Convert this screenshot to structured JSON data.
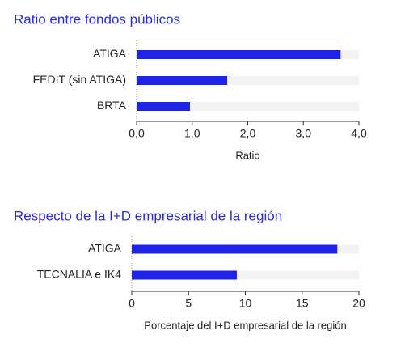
{
  "chart_data": [
    {
      "type": "barh",
      "title": "Ratio entre fondos públicos",
      "categories": [
        "ATIGA",
        "FEDIT (sin ATIGA)",
        "BRTA"
      ],
      "values": [
        3.67,
        1.63,
        0.96
      ],
      "color": "#1d23e8",
      "xlim": [
        0,
        4
      ],
      "xticks": [
        {
          "value": 0,
          "label": "0,0"
        },
        {
          "value": 1,
          "label": "1,0"
        },
        {
          "value": 2,
          "label": "2,0"
        },
        {
          "value": 3,
          "label": "3,0"
        },
        {
          "value": 4,
          "label": "4,0"
        }
      ],
      "xlabel": "Ratio"
    },
    {
      "type": "barh",
      "title": "Respecto de la I+D empresarial de la región",
      "categories": [
        "ATIGA",
        "TECNALIA e IK4"
      ],
      "values": [
        18.1,
        9.25
      ],
      "color": "#1d23e8",
      "xlim": [
        0,
        20
      ],
      "xticks": [
        0,
        5,
        10,
        15,
        20
      ],
      "xlabel": "Porcentaje del I+D empresarial de la región"
    }
  ]
}
